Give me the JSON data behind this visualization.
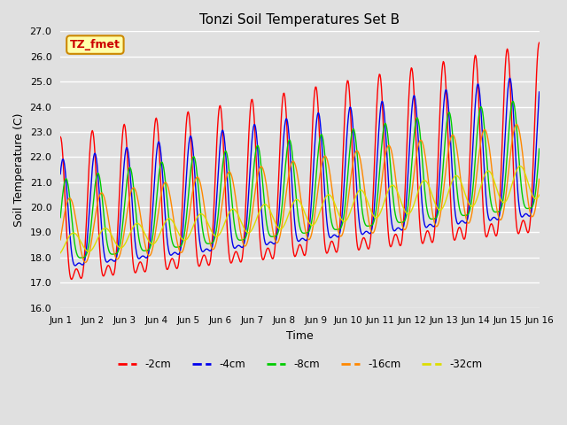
{
  "title": "Tonzi Soil Temperatures Set B",
  "xlabel": "Time",
  "ylabel": "Soil Temperature (C)",
  "ylim": [
    16.0,
    27.0
  ],
  "yticks": [
    16.0,
    17.0,
    18.0,
    19.0,
    20.0,
    21.0,
    22.0,
    23.0,
    24.0,
    25.0,
    26.0,
    27.0
  ],
  "xtick_labels": [
    "Jun 1",
    "Jun 2",
    "Jun 3",
    "Jun 4",
    "Jun 5",
    "Jun 6",
    "Jun 7",
    "Jun 8",
    "Jun 9",
    "Jun 10",
    "Jun 11",
    "Jun 12",
    "Jun 13",
    "Jun 14",
    "Jun 15",
    "Jun 16"
  ],
  "colors": {
    "-2cm": "#ff0000",
    "-4cm": "#0000ee",
    "-8cm": "#00cc00",
    "-16cm": "#ff8800",
    "-32cm": "#dddd00"
  },
  "legend_labels": [
    "-2cm",
    "-4cm",
    "-8cm",
    "-16cm",
    "-32cm"
  ],
  "annotation_text": "TZ_fmet",
  "annotation_bg": "#ffffaa",
  "annotation_border": "#cc8800",
  "bg_color": "#e0e0e0",
  "n_points": 720,
  "day_start": 1,
  "day_end": 16
}
